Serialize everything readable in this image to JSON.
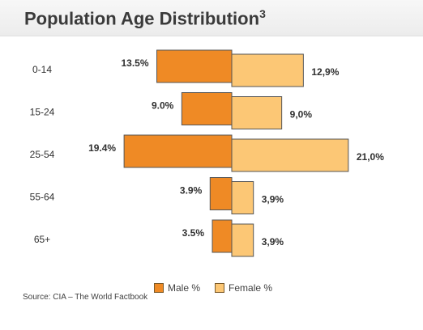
{
  "title": {
    "text": "Population Age Distribution",
    "superscript": "3"
  },
  "source": "Source: CIA – The World Factbook",
  "colors": {
    "male": "#ef8a25",
    "female": "#fcc775"
  },
  "chart_data": {
    "type": "bar",
    "orientation": "horizontal-butterfly",
    "categories": [
      "0-14",
      "15-24",
      "25-54",
      "55-64",
      "65+"
    ],
    "series": [
      {
        "name": "Male %",
        "values": [
          13.5,
          9.0,
          19.4,
          3.9,
          3.5
        ],
        "labels": [
          "13.5%",
          "9.0%",
          "19.4%",
          "3.9%",
          "3.5%"
        ]
      },
      {
        "name": "Female %",
        "values": [
          12.9,
          9.0,
          21.0,
          3.9,
          3.9
        ],
        "labels": [
          "12,9%",
          "9,0%",
          "21,0%",
          "3,9%",
          "3,9%"
        ]
      }
    ],
    "legend_position": "bottom",
    "grid": false
  }
}
